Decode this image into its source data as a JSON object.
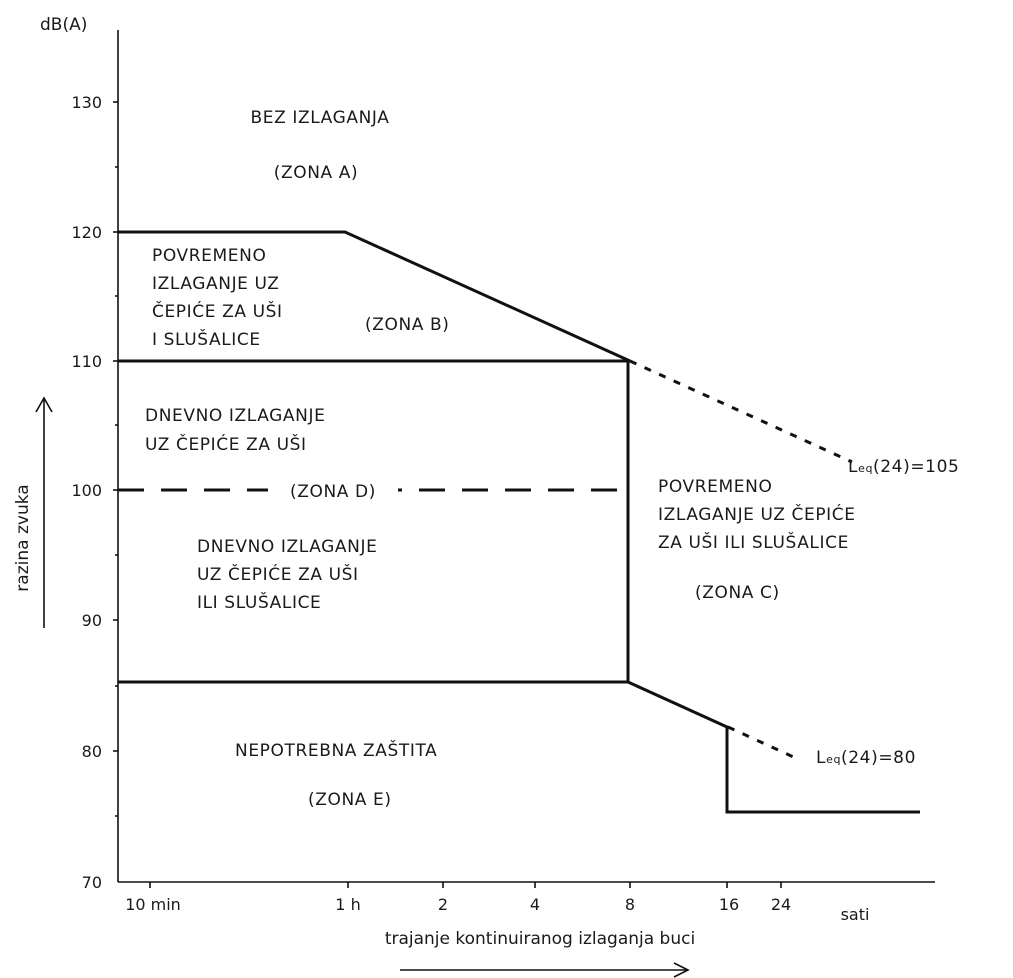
{
  "axes": {
    "y_unit": "dB(A)",
    "y_label": "razina zvuka",
    "x_label": "trajanje kontinuiranog izlaganja buci",
    "x_unit": "sati",
    "y_ticks": [
      "130",
      "120",
      "110",
      "100",
      "90",
      "80",
      "70"
    ],
    "x_ticks": [
      "10 min",
      "1 h",
      "2",
      "4",
      "8",
      "16",
      "24"
    ]
  },
  "zones": {
    "a": {
      "line1": "BEZ IZLAGANJA",
      "name": "(ZONA A)"
    },
    "b": {
      "line1": "POVREMENO",
      "line2": "IZLAGANJE UZ",
      "line3": "ČEPIĆE ZA UŠI",
      "line4": "I SLUŠALICE",
      "name": "(ZONA B)"
    },
    "d_upper": {
      "line1": "DNEVNO IZLAGANJE",
      "line2": "UZ ČEPIĆE ZA UŠI"
    },
    "d": {
      "name": "(ZONA D)"
    },
    "d_lower": {
      "line1": "DNEVNO IZLAGANJE",
      "line2": "UZ ČEPIĆE ZA UŠI",
      "line3": "ILI SLUŠALICE"
    },
    "c": {
      "line1": "POVREMENO",
      "line2": "IZLAGANJE UZ ČEPIĆE",
      "line3": "ZA UŠI ILI SLUŠALICE",
      "name": "(ZONA C)"
    },
    "e": {
      "line1": "NEPOTREBNA ZAŠTITA",
      "name": "(ZONA E)"
    }
  },
  "annotations": {
    "leq_high": {
      "prefix": "L",
      "sub": "eq",
      "suffix": "(24)=105"
    },
    "leq_low": {
      "prefix": "L",
      "sub": "eq",
      "suffix": "(24)=80"
    }
  }
}
